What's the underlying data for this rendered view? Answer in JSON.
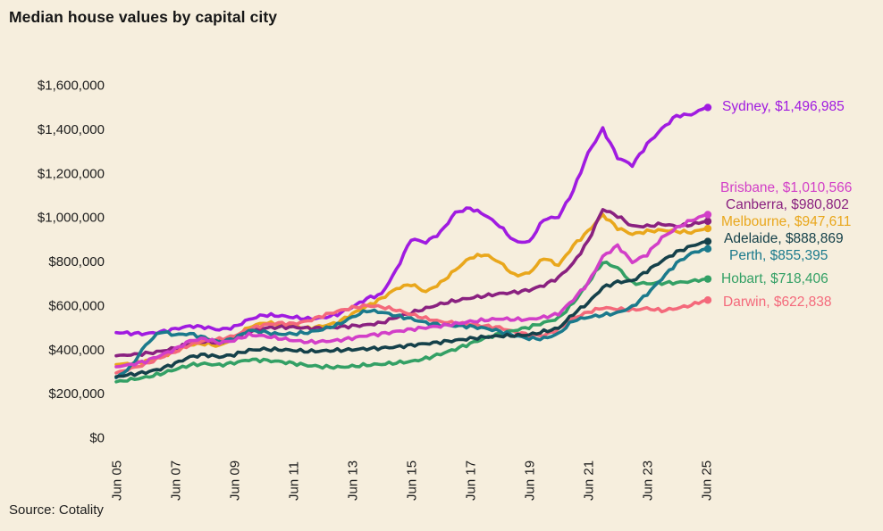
{
  "page": {
    "title": "Median house values by capital city",
    "source": "Source: Cotality",
    "background_color": "#f6eedd",
    "text_color": "#1c1c1c"
  },
  "chart_data": {
    "type": "line",
    "title": "Median house values by capital city",
    "grid": false,
    "legend_position": "right-of-line-ends",
    "y_axis": {
      "min": 0,
      "max": 1600000,
      "tick_labels_top_down": [
        "$1,600,000",
        "$1,400,000",
        "$1,200,000",
        "$1,000,000",
        "$800,000",
        "$600,000",
        "$400,000",
        "$200,000",
        "$0"
      ]
    },
    "x_axis": {
      "tick_labels": [
        "Jun 05",
        "Jun 07",
        "Jun 09",
        "Jun 11",
        "Jun 13",
        "Jun 15",
        "Jun 17",
        "Jun 19",
        "Jun 21",
        "Jun 23",
        "Jun 25"
      ],
      "rotation_deg": -90,
      "range_years": [
        2005.5,
        2025.5
      ]
    },
    "x_years": [
      2005.5,
      2006,
      2006.5,
      2007,
      2007.5,
      2008,
      2008.5,
      2009,
      2009.5,
      2010,
      2010.5,
      2011,
      2011.5,
      2012,
      2012.5,
      2013,
      2013.5,
      2014,
      2014.5,
      2015,
      2015.5,
      2016,
      2016.5,
      2017,
      2017.5,
      2018,
      2018.5,
      2019,
      2019.5,
      2020,
      2020.5,
      2021,
      2021.5,
      2022,
      2022.5,
      2023,
      2023.5,
      2024,
      2024.5,
      2025,
      2025.5
    ],
    "values_unit": "AUD thousands (estimated from plot)",
    "series": [
      {
        "name": "Sydney",
        "color": "#a01be0",
        "end_label": "Sydney, $1,496,985",
        "final_value": 1496985,
        "values_aud_thousands": [
          475,
          472,
          470,
          478,
          492,
          505,
          500,
          488,
          500,
          535,
          555,
          552,
          545,
          538,
          542,
          558,
          590,
          630,
          650,
          760,
          900,
          885,
          930,
          1020,
          1040,
          1010,
          960,
          890,
          885,
          990,
          1000,
          1120,
          1290,
          1400,
          1270,
          1235,
          1330,
          1400,
          1460,
          1465,
          1497
        ]
      },
      {
        "name": "Brisbane",
        "color": "#d23fc8",
        "end_label": "Brisbane, $1,010,566",
        "final_value": 1010566,
        "values_aud_thousands": [
          320,
          330,
          345,
          372,
          400,
          438,
          448,
          428,
          440,
          465,
          460,
          450,
          440,
          432,
          435,
          440,
          450,
          462,
          470,
          480,
          490,
          498,
          505,
          515,
          525,
          532,
          538,
          535,
          535,
          545,
          560,
          625,
          700,
          820,
          870,
          795,
          830,
          905,
          950,
          985,
          1010.6
        ]
      },
      {
        "name": "Canberra",
        "color": "#8a2180",
        "end_label": "Canberra, $980,802",
        "final_value": 980802,
        "values_aud_thousands": [
          370,
          375,
          380,
          390,
          405,
          425,
          435,
          430,
          450,
          480,
          495,
          500,
          500,
          495,
          495,
          500,
          505,
          510,
          520,
          545,
          565,
          585,
          605,
          620,
          632,
          642,
          652,
          658,
          668,
          690,
          725,
          790,
          890,
          1035,
          1005,
          958,
          958,
          968,
          958,
          965,
          980.8
        ]
      },
      {
        "name": "Melbourne",
        "color": "#e9a71c",
        "end_label": "Melbourne, $947,611",
        "final_value": 947611,
        "values_aud_thousands": [
          330,
          335,
          345,
          365,
          390,
          420,
          425,
          415,
          450,
          500,
          520,
          515,
          505,
          495,
          505,
          520,
          560,
          595,
          630,
          675,
          695,
          660,
          700,
          760,
          815,
          830,
          795,
          735,
          745,
          815,
          780,
          870,
          935,
          1010,
          950,
          922,
          935,
          940,
          935,
          930,
          947.6
        ]
      },
      {
        "name": "Adelaide",
        "color": "#15414a",
        "end_label": "Adelaide, $888,869",
        "final_value": 888869,
        "values_aud_thousands": [
          275,
          285,
          295,
          310,
          335,
          365,
          375,
          365,
          375,
          395,
          400,
          398,
          395,
          390,
          392,
          395,
          398,
          402,
          405,
          410,
          418,
          425,
          432,
          440,
          448,
          455,
          460,
          462,
          465,
          480,
          495,
          560,
          610,
          680,
          705,
          710,
          755,
          800,
          840,
          868,
          888.9
        ]
      },
      {
        "name": "Perth",
        "color": "#1b7a8c",
        "end_label": "Perth, $855,395",
        "final_value": 855395,
        "values_aud_thousands": [
          270,
          320,
          420,
          480,
          465,
          470,
          452,
          432,
          448,
          485,
          478,
          468,
          470,
          475,
          490,
          510,
          545,
          575,
          568,
          552,
          538,
          520,
          510,
          506,
          503,
          495,
          482,
          462,
          448,
          448,
          470,
          530,
          545,
          555,
          565,
          592,
          650,
          720,
          790,
          835,
          855.4
        ]
      },
      {
        "name": "Hobart",
        "color": "#33a065",
        "end_label": "Hobart, $718,406",
        "final_value": 718406,
        "values_aud_thousands": [
          252,
          262,
          272,
          288,
          308,
          328,
          334,
          328,
          338,
          352,
          350,
          344,
          336,
          326,
          320,
          318,
          322,
          328,
          332,
          338,
          344,
          358,
          378,
          400,
          425,
          450,
          470,
          485,
          500,
          520,
          540,
          610,
          700,
          795,
          770,
          700,
          698,
          700,
          702,
          708,
          718.4
        ]
      },
      {
        "name": "Darwin",
        "color": "#f4697b",
        "end_label": "Darwin, $622,838",
        "final_value": 622838,
        "values_aud_thousands": [
          292,
          312,
          332,
          362,
          388,
          420,
          440,
          445,
          460,
          490,
          510,
          518,
          515,
          528,
          552,
          572,
          588,
          598,
          592,
          578,
          558,
          540,
          525,
          518,
          512,
          505,
          498,
          478,
          465,
          462,
          490,
          540,
          568,
          588,
          582,
          578,
          585,
          575,
          585,
          600,
          622.8
        ]
      }
    ]
  }
}
